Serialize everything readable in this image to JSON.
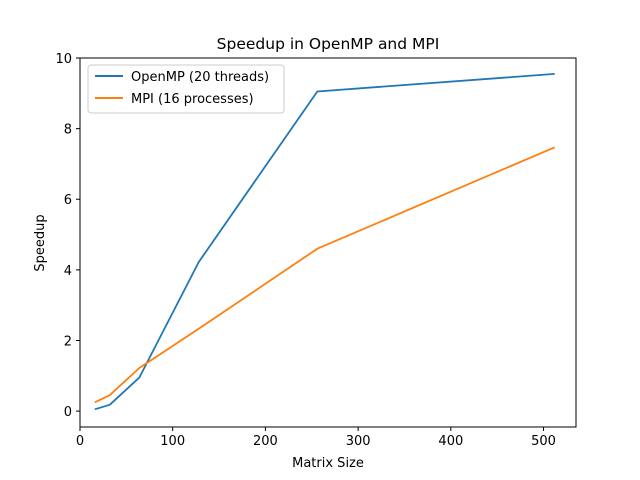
{
  "chart_data": {
    "type": "line",
    "title": "Speedup in OpenMP and MPI",
    "xlabel": "Matrix Size",
    "ylabel": "Speedup",
    "xlim": [
      0,
      535
    ],
    "ylim": [
      -0.45,
      10
    ],
    "xticks": [
      0,
      100,
      200,
      300,
      400,
      500
    ],
    "yticks": [
      0,
      2,
      4,
      6,
      8,
      10
    ],
    "grid": false,
    "legend_position": "upper-left",
    "series": [
      {
        "name": "OpenMP (20 threads)",
        "color": "#1f77b4",
        "points": [
          [
            16,
            0.05
          ],
          [
            32,
            0.18
          ],
          [
            64,
            0.95
          ],
          [
            128,
            4.22
          ],
          [
            256,
            9.05
          ],
          [
            512,
            9.55
          ]
        ]
      },
      {
        "name": "MPI (16 processes)",
        "color": "#ff7f0e",
        "points": [
          [
            16,
            0.25
          ],
          [
            32,
            0.45
          ],
          [
            64,
            1.22
          ],
          [
            128,
            2.33
          ],
          [
            256,
            4.6
          ],
          [
            512,
            7.47
          ]
        ]
      }
    ]
  }
}
